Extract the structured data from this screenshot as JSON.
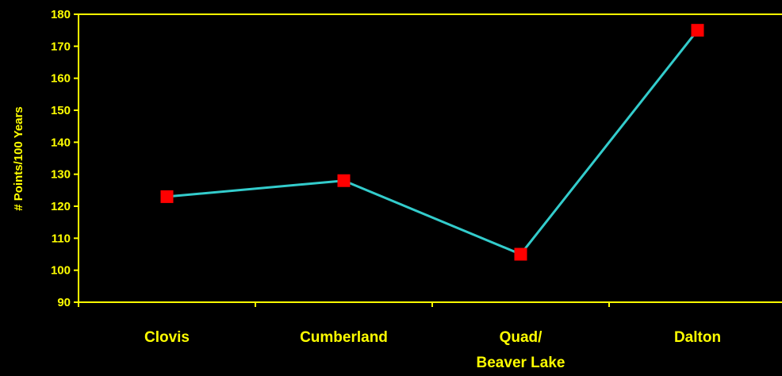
{
  "chart_data": {
    "type": "line",
    "title": "",
    "xlabel": "",
    "ylabel": "# Points/100 Years",
    "categories": [
      [
        "Clovis"
      ],
      [
        "Cumberland"
      ],
      [
        "Quad/",
        "Beaver Lake"
      ],
      [
        "Dalton"
      ]
    ],
    "series": [
      {
        "values": [
          123,
          128,
          105,
          175
        ]
      }
    ],
    "ylim": [
      90,
      180
    ],
    "yticks": [
      "90",
      "100",
      "110",
      "120",
      "130",
      "140",
      "150",
      "160",
      "170",
      "180"
    ],
    "grid": false,
    "legend": "none"
  },
  "colors": {
    "background": "#000000",
    "axis": "#ffff00",
    "text": "#ffff00",
    "line": "#33cccc",
    "marker": "#ff0000"
  }
}
